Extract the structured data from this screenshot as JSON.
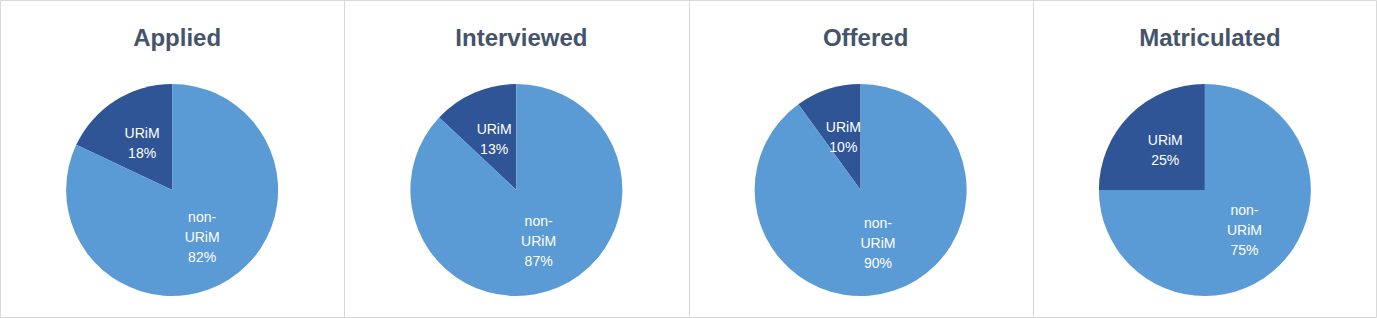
{
  "chart_data": [
    {
      "type": "pie",
      "title": "Applied",
      "categories": [
        "URiM",
        "non-URiM"
      ],
      "values": [
        18,
        82
      ],
      "value_labels": [
        "18%",
        "82%"
      ],
      "colors": [
        "#2f5597",
        "#5b9bd5"
      ],
      "data_labels": true
    },
    {
      "type": "pie",
      "title": "Interviewed",
      "categories": [
        "URiM",
        "non-URiM"
      ],
      "values": [
        13,
        87
      ],
      "value_labels": [
        "13%",
        "87%"
      ],
      "colors": [
        "#2f5597",
        "#5b9bd5"
      ],
      "data_labels": true
    },
    {
      "type": "pie",
      "title": "Offered",
      "categories": [
        "URiM",
        "non-URiM"
      ],
      "values": [
        10,
        90
      ],
      "value_labels": [
        "10%",
        "90%"
      ],
      "colors": [
        "#2f5597",
        "#5b9bd5"
      ],
      "data_labels": true
    },
    {
      "type": "pie",
      "title": "Matriculated",
      "categories": [
        "URiM",
        "non-URiM"
      ],
      "values": [
        25,
        75
      ],
      "value_labels": [
        "25%",
        "75%"
      ],
      "colors": [
        "#2f5597",
        "#5b9bd5"
      ],
      "data_labels": true
    }
  ]
}
